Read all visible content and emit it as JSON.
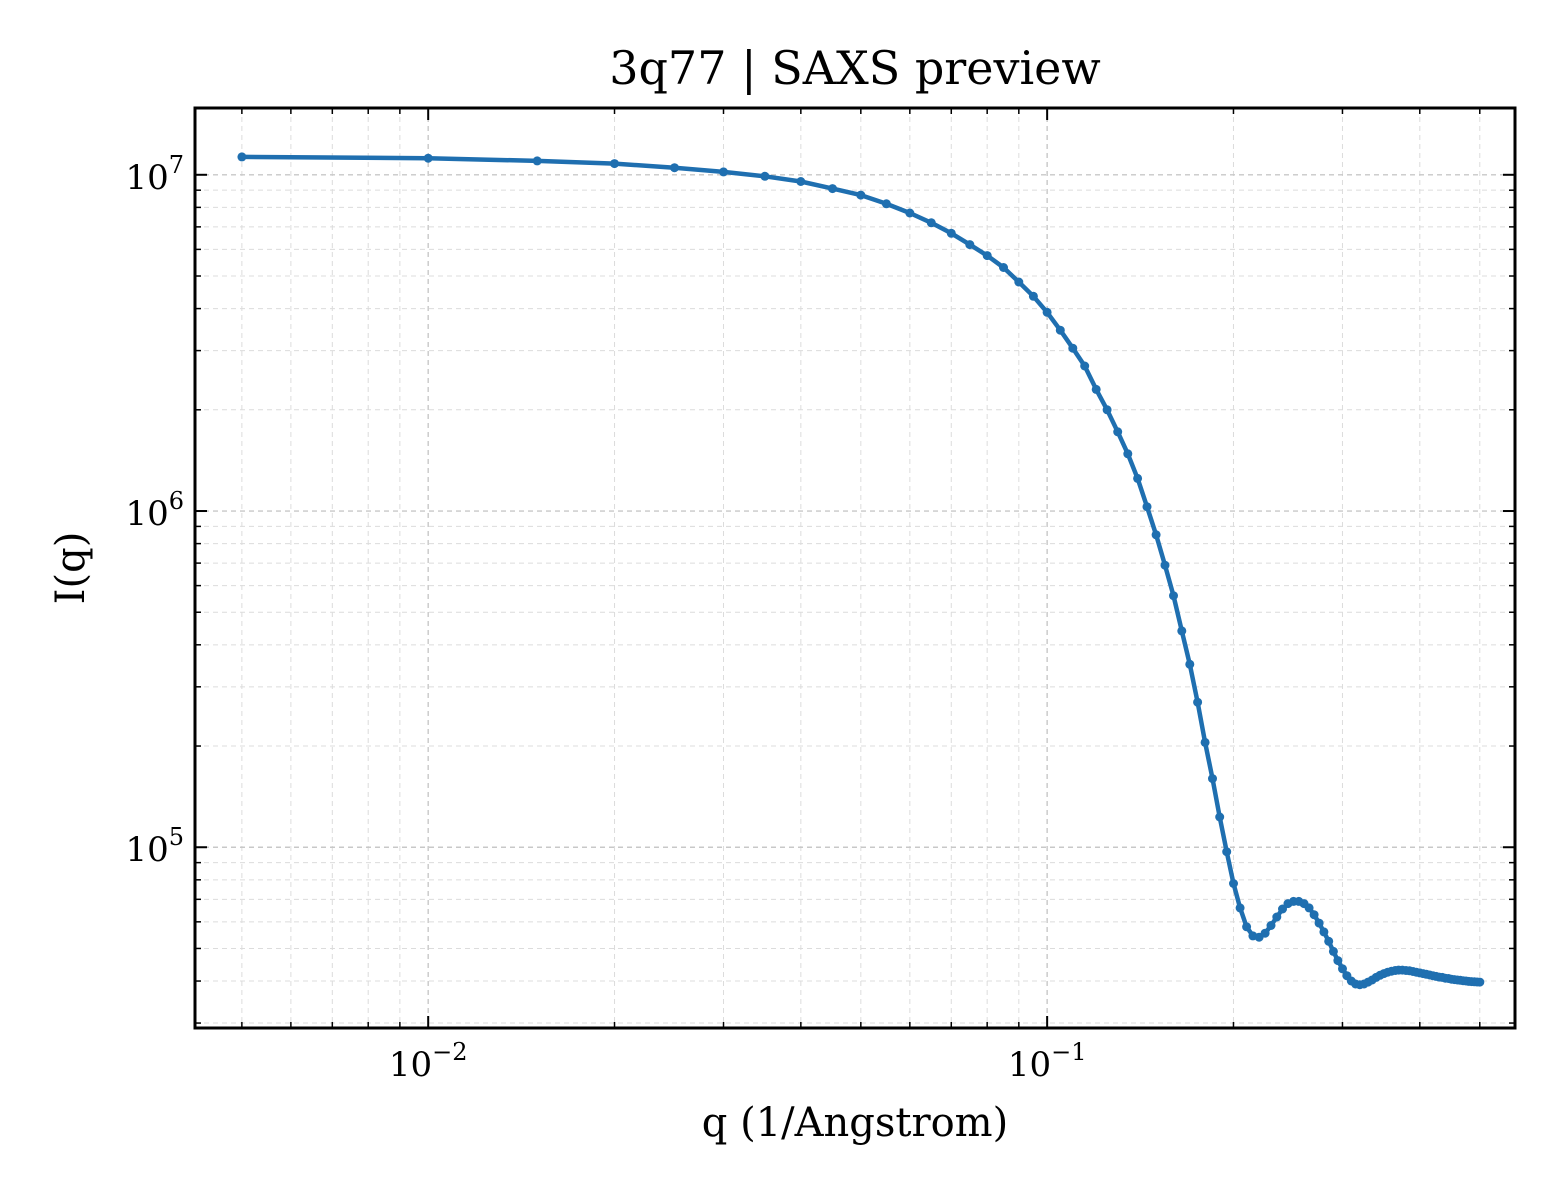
{
  "chart_data": {
    "type": "line",
    "title": "3q77 | SAXS preview",
    "xlabel": "q (1/Angstrom)",
    "ylabel": "I(q)",
    "xscale": "log",
    "yscale": "log",
    "xlim": [
      0.0042,
      0.57
    ],
    "ylim": [
      29000,
      15800000
    ],
    "grid": true,
    "x_ticks": [
      {
        "value": 0.01,
        "base": "10",
        "exp": "−2"
      },
      {
        "value": 0.1,
        "base": "10",
        "exp": "−1"
      }
    ],
    "y_ticks": [
      {
        "value": 100000,
        "base": "10",
        "exp": "5"
      },
      {
        "value": 1000000,
        "base": "10",
        "exp": "6"
      },
      {
        "value": 10000000,
        "base": "10",
        "exp": "7"
      }
    ],
    "line_color": "#1f6fb0",
    "series": [
      {
        "x": [
          0.005,
          0.01,
          0.015,
          0.02,
          0.025,
          0.03,
          0.035,
          0.04,
          0.045,
          0.05,
          0.055,
          0.06,
          0.065,
          0.07,
          0.075,
          0.08,
          0.085,
          0.09,
          0.095,
          0.1,
          0.105,
          0.11,
          0.115,
          0.12,
          0.125,
          0.13,
          0.135,
          0.14,
          0.145,
          0.15,
          0.155,
          0.16,
          0.165,
          0.17,
          0.175,
          0.18,
          0.185,
          0.19,
          0.195,
          0.2,
          0.205,
          0.21,
          0.215,
          0.22,
          0.225,
          0.23,
          0.235,
          0.24,
          0.245,
          0.25,
          0.255,
          0.26,
          0.265,
          0.27,
          0.275,
          0.28,
          0.285,
          0.29,
          0.295,
          0.3,
          0.305,
          0.31,
          0.315,
          0.32,
          0.325,
          0.33,
          0.335,
          0.34,
          0.345,
          0.35,
          0.355,
          0.36,
          0.365,
          0.37,
          0.375,
          0.38,
          0.385,
          0.39,
          0.395,
          0.4,
          0.405,
          0.41,
          0.415,
          0.42,
          0.425,
          0.43,
          0.435,
          0.44,
          0.445,
          0.45,
          0.455,
          0.46,
          0.465,
          0.47,
          0.475,
          0.48,
          0.485,
          0.49,
          0.495,
          0.5
        ],
        "y": [
          11300000,
          11200000,
          11000000,
          10800000,
          10500000,
          10200000,
          9900000,
          9550000,
          9100000,
          8700000,
          8200000,
          7700000,
          7200000,
          6700000,
          6200000,
          5750000,
          5300000,
          4800000,
          4350000,
          3900000,
          3450000,
          3050000,
          2700000,
          2300000,
          2000000,
          1720000,
          1480000,
          1250000,
          1030000,
          850000,
          690000,
          560000,
          440000,
          350000,
          270000,
          205000,
          160000,
          123000,
          97000,
          78000,
          66000,
          58000,
          54500,
          54000,
          55500,
          58500,
          62000,
          65500,
          68000,
          69000,
          69000,
          68000,
          66000,
          63000,
          59500,
          56000,
          52500,
          49000,
          46000,
          43500,
          41500,
          40000,
          39200,
          39000,
          39200,
          39700,
          40300,
          41000,
          41600,
          42100,
          42500,
          42800,
          43000,
          43100,
          43100,
          43000,
          42900,
          42700,
          42500,
          42300,
          42100,
          41900,
          41700,
          41500,
          41300,
          41100,
          41000,
          40800,
          40700,
          40500,
          40400,
          40300,
          40200,
          40100,
          40000,
          39900,
          39850,
          39800,
          39750,
          39700
        ]
      }
    ]
  }
}
